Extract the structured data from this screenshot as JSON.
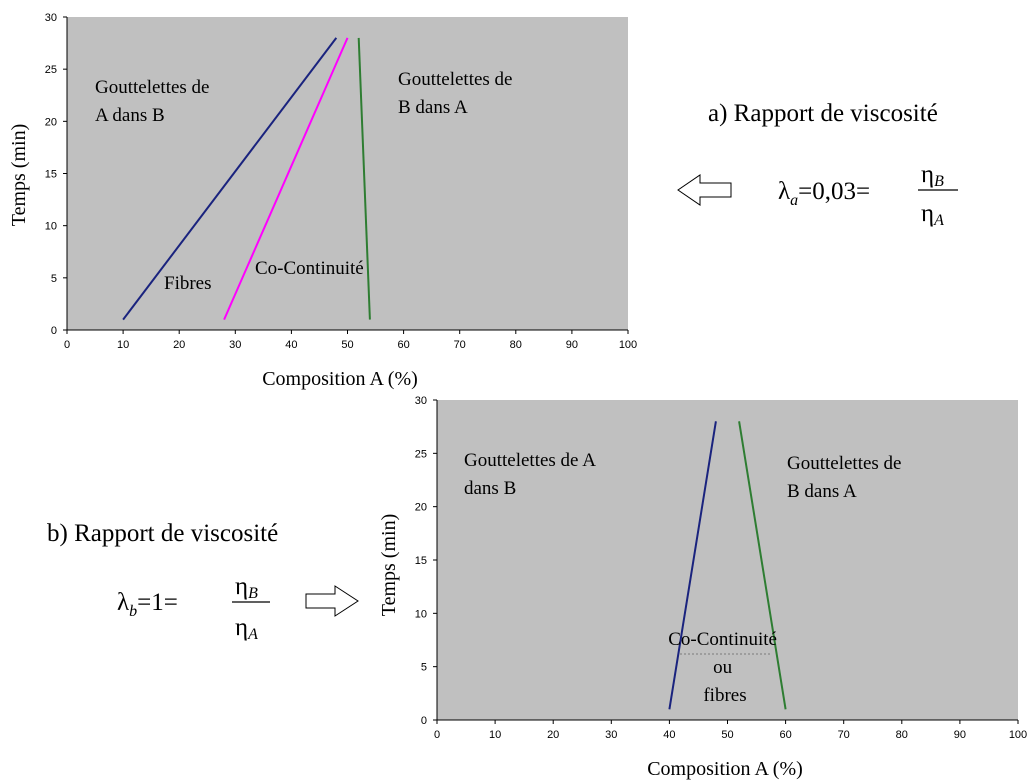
{
  "chart_data": [
    {
      "type": "line",
      "xlabel": "Composition A (%)",
      "ylabel": "Temps (min)",
      "xlim": [
        0,
        100
      ],
      "ylim": [
        0,
        30
      ],
      "xticks": [
        "0",
        "10",
        "20",
        "30",
        "40",
        "50",
        "60",
        "70",
        "80",
        "90",
        "100"
      ],
      "yticks": [
        "0",
        "5",
        "10",
        "15",
        "20",
        "25",
        "30"
      ],
      "background": "#c0c0c0",
      "series": [
        {
          "color": "#1a237e",
          "points": [
            [
              10,
              1
            ],
            [
              48,
              28
            ]
          ]
        },
        {
          "color": "#ff00ff",
          "points": [
            [
              28,
              1
            ],
            [
              50,
              28
            ]
          ]
        },
        {
          "color": "#2e7d32",
          "points": [
            [
              54,
              1
            ],
            [
              52,
              28
            ]
          ]
        }
      ],
      "regions": {
        "r1": [
          "Gouttelettes de",
          "A dans B"
        ],
        "r2": [
          "Gouttelettes de",
          "B dans A"
        ],
        "r3": [
          "Fibres"
        ],
        "r4": [
          "Co-Continuité"
        ]
      },
      "caption": "a) Rapport de viscosité",
      "formula": {
        "lhs": "λ",
        "lhs_sub": "a",
        "eq1": "=",
        "value": "0,03",
        "eq2": "=",
        "num": "η",
        "num_sub": "B",
        "den": "η",
        "den_sub": "A"
      },
      "arrow_direction": "left"
    },
    {
      "type": "line",
      "xlabel": "Composition A (%)",
      "ylabel": "Temps (min)",
      "xlim": [
        0,
        100
      ],
      "ylim": [
        0,
        30
      ],
      "xticks": [
        "0",
        "10",
        "20",
        "30",
        "40",
        "50",
        "60",
        "70",
        "80",
        "90",
        "100"
      ],
      "yticks": [
        "0",
        "5",
        "10",
        "15",
        "20",
        "25",
        "30"
      ],
      "background": "#c0c0c0",
      "series": [
        {
          "color": "#1a237e",
          "points": [
            [
              40,
              1
            ],
            [
              48,
              28
            ]
          ]
        },
        {
          "color": "#2e7d32",
          "points": [
            [
              60,
              1
            ],
            [
              52,
              28
            ]
          ]
        }
      ],
      "regions": {
        "r1": [
          "Gouttelettes de  A",
          "dans B"
        ],
        "r2": [
          "Gouttelettes de",
          "B dans A"
        ],
        "r3": [
          "Co-Continuité",
          "ou",
          "fibres"
        ]
      },
      "caption": "b) Rapport de viscosité",
      "formula": {
        "lhs": "λ",
        "lhs_sub": "b",
        "eq1": "=",
        "value": "1",
        "eq2": "=",
        "num": "η",
        "num_sub": "B",
        "den": "η",
        "den_sub": "A"
      },
      "arrow_direction": "right"
    }
  ]
}
